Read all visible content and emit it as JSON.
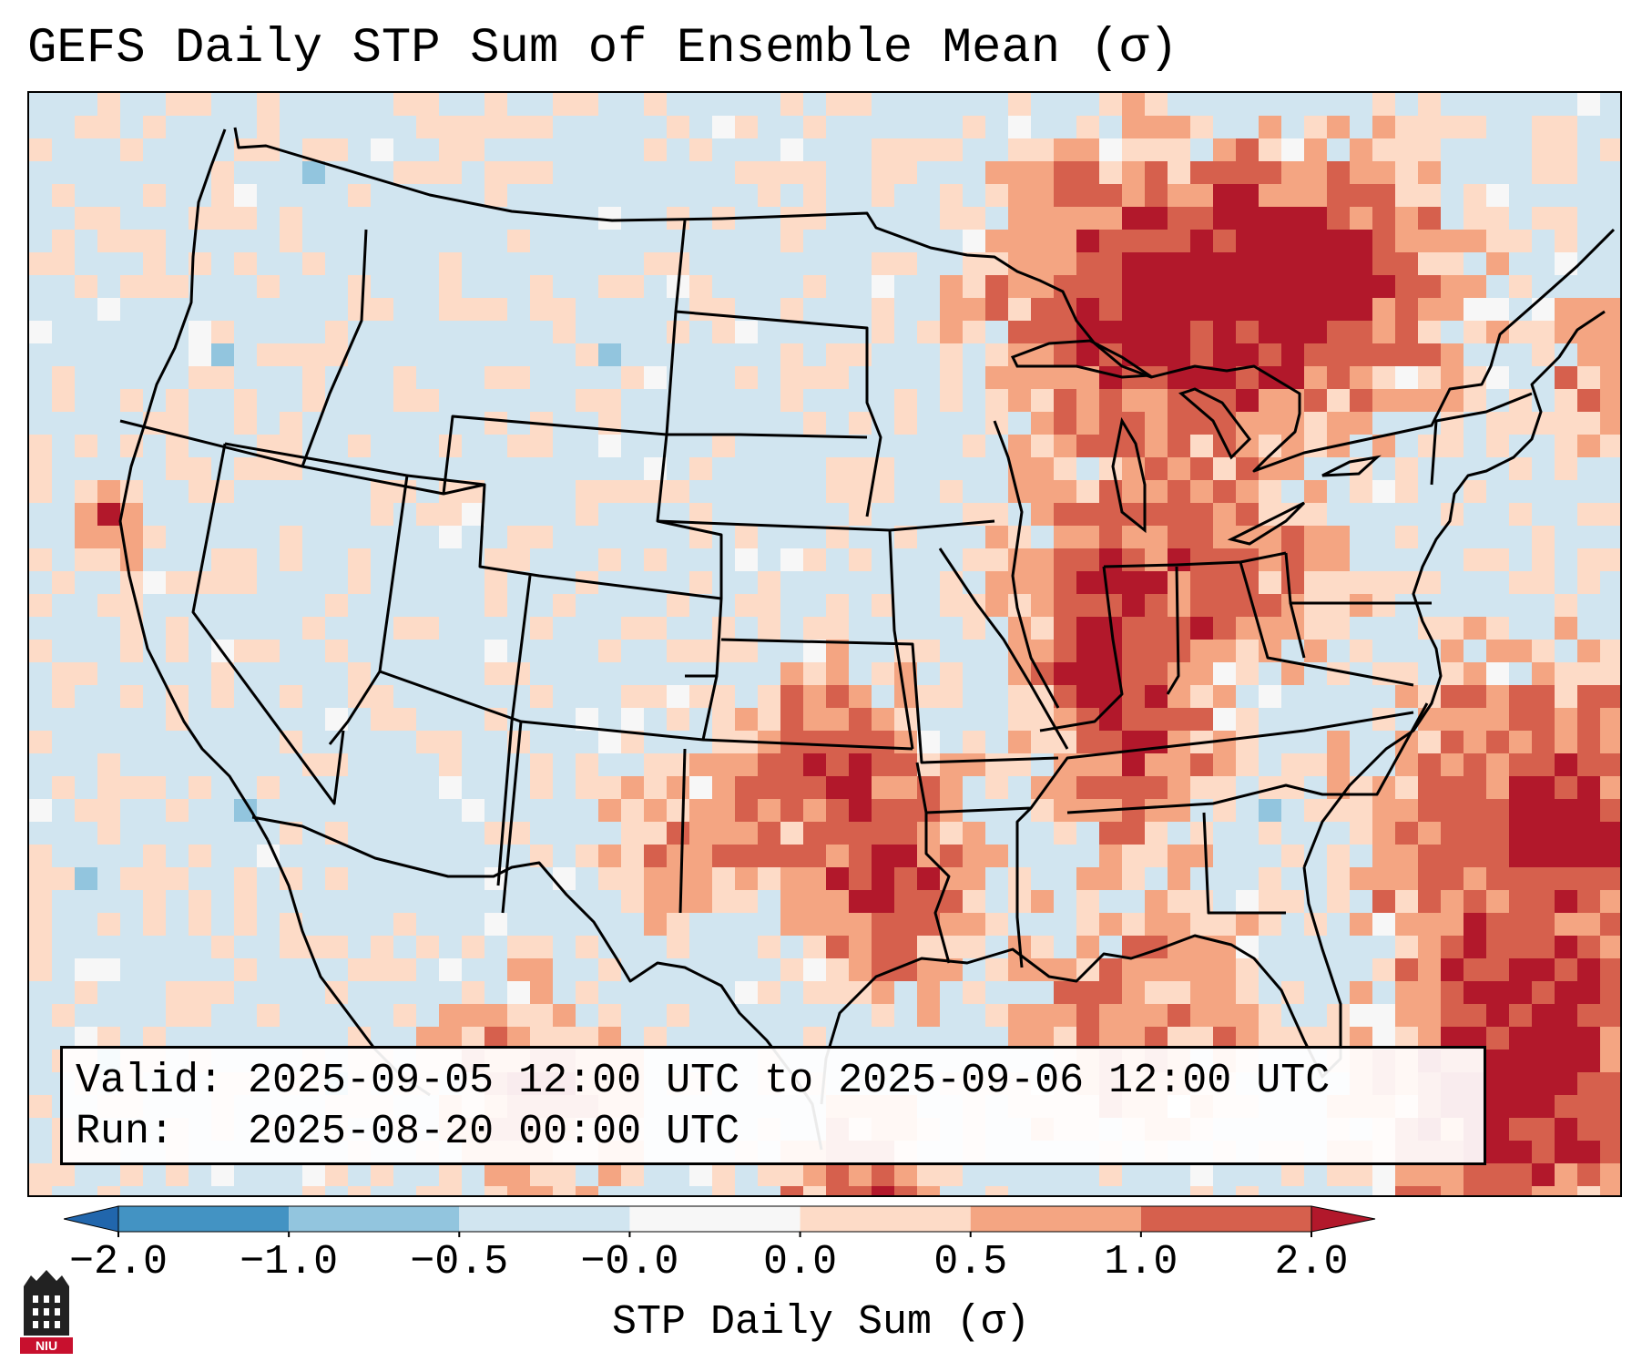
{
  "title": "GEFS Daily STP Sum of Ensemble Mean (σ)",
  "info": {
    "valid_line": "Valid: 2025-09-05 12:00 UTC to 2025-09-06 12:00 UTC",
    "run_line": "Run:   2025-08-20 00:00 UTC"
  },
  "colorbar": {
    "label": "STP Daily Sum (σ)",
    "ticks": [
      "−2.0",
      "−1.0",
      "−0.5",
      "−0.0",
      "0.0",
      "0.5",
      "1.0",
      "2.0"
    ],
    "colors": [
      "#2166ac",
      "#4393c3",
      "#92c5de",
      "#d1e5f0",
      "#f7f7f7",
      "#fddbc7",
      "#f4a582",
      "#d6604d",
      "#b2182b"
    ],
    "extend": "both"
  },
  "map": {
    "region": "Contiguous United States",
    "ocean_color": "#d1e5f0",
    "anomaly_areas": [
      {
        "region": "Great Lakes / Upper Midwest / Ontario",
        "level": "1.0 to 2.0"
      },
      {
        "region": "Ohio Valley / Tennessee",
        "level": "0.5 to 2.0"
      },
      {
        "region": "Southern Plains (Oklahoma / north Texas)",
        "level": "0.5 to 2.0"
      },
      {
        "region": "Western Atlantic / Bahamas",
        "level": "0.5 to 2.0"
      },
      {
        "region": "Gulf Coast / Southeast",
        "level": "0.0 to 1.0"
      },
      {
        "region": "Western US",
        "level": "-0.5 to 0.0"
      }
    ]
  },
  "logo": {
    "text": "NIU"
  }
}
